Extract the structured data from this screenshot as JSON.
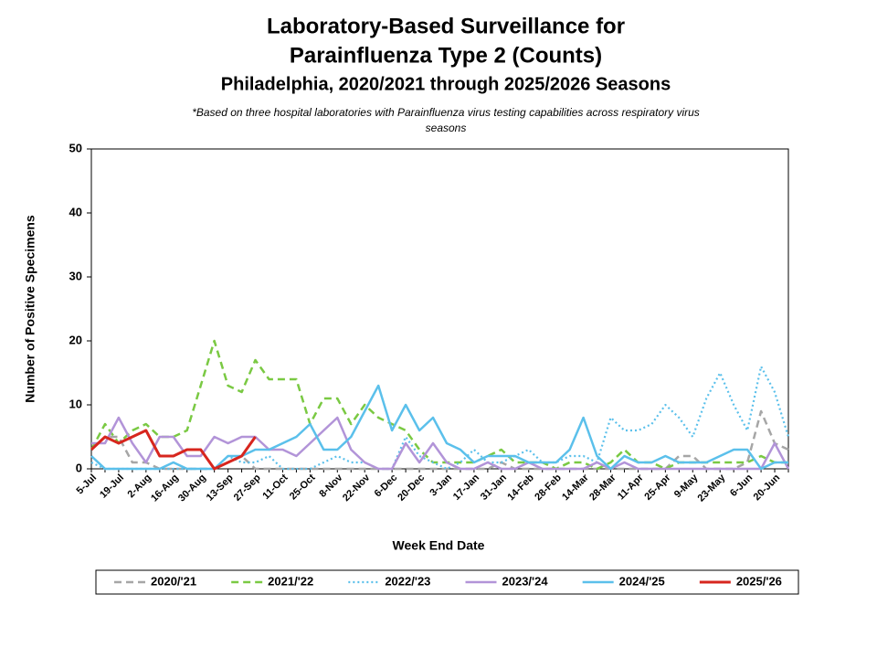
{
  "chart_data": {
    "type": "line",
    "title": [
      "Laboratory-Based Surveillance for",
      "Parainfluenza Type 2 (Counts)"
    ],
    "subtitle": "Philadelphia, 2020/2021 through 2025/2026 Seasons",
    "note": [
      "*Based on three hospital laboratories with Parainfluenza virus testing capabilities across respiratory virus",
      "seasons"
    ],
    "x_label": "Week End Date",
    "y_label": "Number of Positive Specimens",
    "categories": [
      "5-Jul",
      null,
      "19-Jul",
      null,
      "2-Aug",
      null,
      "16-Aug",
      null,
      "30-Aug",
      null,
      "13-Sep",
      null,
      "27-Sep",
      null,
      "11-Oct",
      null,
      "25-Oct",
      null,
      "8-Nov",
      null,
      "22-Nov",
      null,
      "6-Dec",
      null,
      "20-Dec",
      null,
      "3-Jan",
      null,
      "17-Jan",
      null,
      "31-Jan",
      null,
      "14-Feb",
      null,
      "28-Feb",
      null,
      "14-Mar",
      null,
      "28-Mar",
      null,
      "11-Apr",
      null,
      "25-Apr",
      null,
      "9-May",
      null,
      "23-May",
      null,
      "6-Jun",
      null,
      "20-Jun",
      null
    ],
    "ylim": [
      0,
      50
    ],
    "yticks": [
      0,
      10,
      20,
      30,
      40,
      50
    ],
    "series": [
      {
        "name": "2020/'21",
        "color": "#a6a6a6",
        "style": "dashed",
        "values": [
          3,
          5,
          5,
          1,
          1,
          0,
          0,
          0,
          0,
          0,
          1,
          2,
          0,
          0,
          0,
          0,
          0,
          0,
          0,
          0,
          0,
          0,
          0,
          0,
          0,
          0,
          0,
          0,
          0,
          0,
          1,
          0,
          0,
          0,
          0,
          0,
          0,
          0,
          0,
          0,
          0,
          0,
          0,
          2,
          2,
          0,
          0,
          0,
          1,
          9,
          4,
          3
        ]
      },
      {
        "name": "2021/'22",
        "color": "#7ac943",
        "style": "dashed",
        "values": [
          3,
          7,
          4,
          6,
          7,
          5,
          5,
          6,
          13,
          20,
          13,
          12,
          17,
          14,
          14,
          14,
          7,
          11,
          11,
          7,
          10,
          8,
          7,
          6,
          3,
          1,
          1,
          1,
          1,
          2,
          3,
          1,
          1,
          1,
          0,
          1,
          1,
          0,
          1,
          3,
          1,
          1,
          0,
          1,
          1,
          1,
          1,
          1,
          1,
          2,
          1,
          1
        ]
      },
      {
        "name": "2022/'23",
        "color": "#5bc0eb",
        "style": "dotted",
        "values": [
          1,
          0,
          0,
          0,
          0,
          0,
          0,
          0,
          0,
          0,
          2,
          1,
          1,
          2,
          0,
          0,
          0,
          1,
          2,
          1,
          1,
          0,
          0,
          5,
          2,
          1,
          0,
          1,
          3,
          1,
          1,
          2,
          3,
          1,
          1,
          2,
          2,
          1,
          8,
          6,
          6,
          7,
          10,
          8,
          5,
          11,
          15,
          10,
          6,
          16,
          12,
          5
        ]
      },
      {
        "name": "2023/'24",
        "color": "#b294d8",
        "style": "solid",
        "values": [
          4,
          4,
          8,
          4,
          1,
          5,
          5,
          2,
          2,
          5,
          4,
          5,
          5,
          3,
          3,
          2,
          4,
          6,
          8,
          3,
          1,
          0,
          0,
          4,
          1,
          4,
          1,
          0,
          0,
          1,
          0,
          0,
          1,
          0,
          0,
          0,
          0,
          1,
          0,
          1,
          0,
          0,
          0,
          0,
          0,
          0,
          0,
          0,
          0,
          0,
          4,
          0
        ]
      },
      {
        "name": "2024/'25",
        "color": "#5bc0eb",
        "style": "solid",
        "values": [
          2,
          0,
          0,
          0,
          0,
          0,
          1,
          0,
          0,
          0,
          2,
          2,
          3,
          3,
          4,
          5,
          7,
          3,
          3,
          5,
          9,
          13,
          6,
          10,
          6,
          8,
          4,
          3,
          1,
          2,
          2,
          2,
          1,
          1,
          1,
          3,
          8,
          2,
          0,
          2,
          1,
          1,
          2,
          1,
          1,
          1,
          2,
          3,
          3,
          0,
          1,
          1
        ]
      },
      {
        "name": "2025/'26",
        "color": "#d7261e",
        "style": "thick",
        "values": [
          3,
          5,
          4,
          5,
          6,
          2,
          2,
          3,
          3,
          0,
          1,
          2,
          5,
          null,
          null,
          null,
          null,
          null,
          null,
          null,
          null,
          null,
          null,
          null,
          null,
          null,
          null,
          null,
          null,
          null,
          null,
          null,
          null,
          null,
          null,
          null,
          null,
          null,
          null,
          null,
          null,
          null,
          null,
          null,
          null,
          null,
          null,
          null,
          null,
          null,
          null,
          null
        ]
      }
    ]
  }
}
